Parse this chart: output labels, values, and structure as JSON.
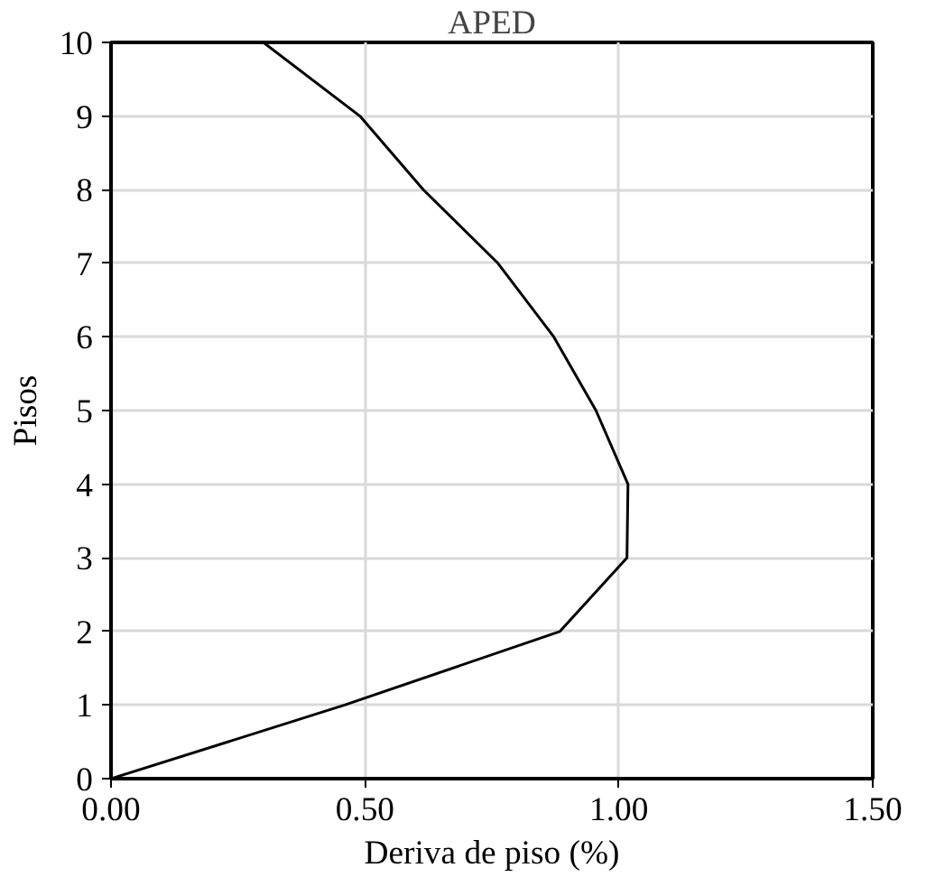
{
  "chart_data": {
    "type": "line",
    "title": "APED",
    "xlabel": "Deriva de piso (%)",
    "ylabel": "Pisos",
    "series": [
      {
        "color": "#000000",
        "x": [
          0.0,
          0.46,
          0.884,
          1.016,
          1.018,
          0.955,
          0.872,
          0.762,
          0.615,
          0.49,
          0.3
        ],
        "values": [
          0,
          1,
          2,
          3,
          4,
          5,
          6,
          7,
          8,
          9,
          10
        ]
      }
    ],
    "xlim": [
      0,
      1.5
    ],
    "xticks": [
      {
        "value": 0,
        "label": "0.00"
      },
      {
        "value": 0.5,
        "label": "0.50"
      },
      {
        "value": 1.0,
        "label": "1.00"
      },
      {
        "value": 1.5,
        "label": "1.50"
      }
    ],
    "ylim": [
      0,
      10
    ],
    "yticks": [
      0,
      1,
      2,
      3,
      4,
      5,
      6,
      7,
      8,
      9,
      10
    ],
    "grid": true,
    "marker": "none",
    "line_style": "solid"
  }
}
